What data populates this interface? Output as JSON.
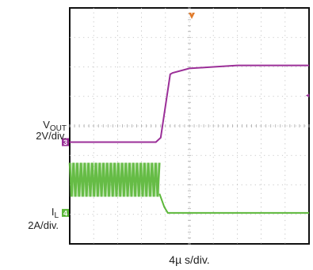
{
  "chart_data": {
    "type": "line",
    "title": "",
    "grid": true,
    "x_divisions": 10,
    "y_divisions": 8,
    "timebase": {
      "value": "4µ",
      "unit": "s/div."
    },
    "channels": [
      {
        "name_main": "V",
        "name_sub": "OUT",
        "scale": "2V/div.",
        "marker": "3",
        "color": "#9b2f98",
        "x_div": [
          0,
          2.8,
          3.6,
          3.8,
          4.2,
          4.3,
          5.0,
          6.0,
          7.0,
          8.0,
          9.0,
          10.0
        ],
        "y_div": [
          3.45,
          3.45,
          3.45,
          3.6,
          5.75,
          5.8,
          5.95,
          6.0,
          6.05,
          6.05,
          6.05,
          6.05
        ]
      },
      {
        "name_main": "I",
        "name_sub": "L",
        "scale": "2A/div.",
        "marker": "4",
        "color": "#5cb83a",
        "ripple_until_div": 3.75,
        "ripple_high_div": 2.75,
        "ripple_low_div": 1.6,
        "ripple_cycles": 24,
        "x_div": [
          3.75,
          3.95,
          4.1,
          10.0
        ],
        "y_div": [
          1.7,
          1.25,
          1.05,
          1.05
        ]
      }
    ],
    "markers": {
      "trigger": {
        "symbol": "T",
        "color": "#e07a2a"
      },
      "trigger_level": {
        "symbol": "◂",
        "color": "#9b2f98"
      }
    }
  }
}
